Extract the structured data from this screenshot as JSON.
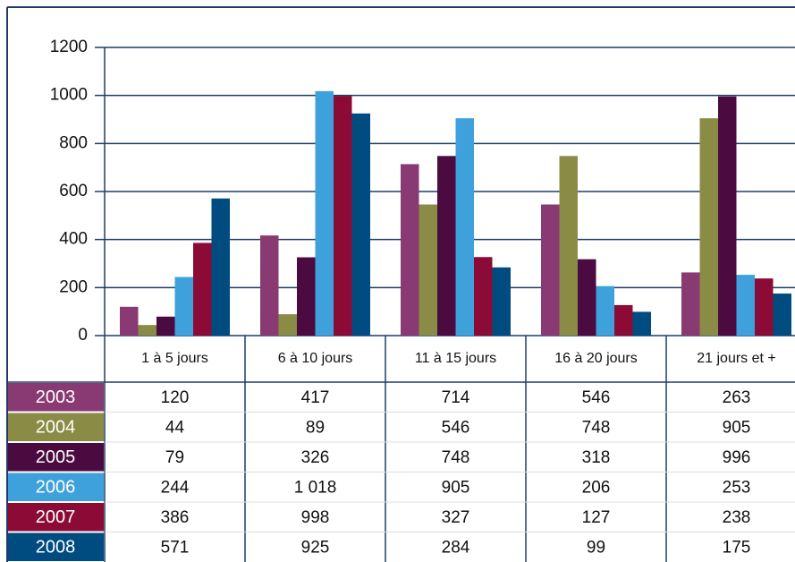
{
  "chart_data": {
    "type": "bar",
    "categories": [
      "1 à 5 jours",
      "6 à 10 jours",
      "11 à 15 jours",
      "16 à 20 jours",
      "21 jours et +"
    ],
    "series": [
      {
        "name": "2003",
        "color": "#8a3a72",
        "values": [
          120,
          417,
          714,
          546,
          263
        ]
      },
      {
        "name": "2004",
        "color": "#8a8c46",
        "values": [
          44,
          89,
          546,
          748,
          905
        ]
      },
      {
        "name": "2005",
        "color": "#4b0b40",
        "values": [
          79,
          326,
          748,
          318,
          996
        ]
      },
      {
        "name": "2006",
        "color": "#3ea1dc",
        "values": [
          244,
          1018,
          905,
          206,
          253
        ],
        "value_labels": [
          "244",
          "1 018",
          "905",
          "206",
          "253"
        ]
      },
      {
        "name": "2007",
        "color": "#8c0b36",
        "values": [
          386,
          998,
          327,
          127,
          238
        ]
      },
      {
        "name": "2008",
        "color": "#004b80",
        "values": [
          571,
          925,
          284,
          99,
          175
        ]
      }
    ],
    "ylim": [
      0,
      1200
    ],
    "yticks": [
      0,
      200,
      400,
      600,
      800,
      1000,
      1200
    ],
    "grid": true
  }
}
